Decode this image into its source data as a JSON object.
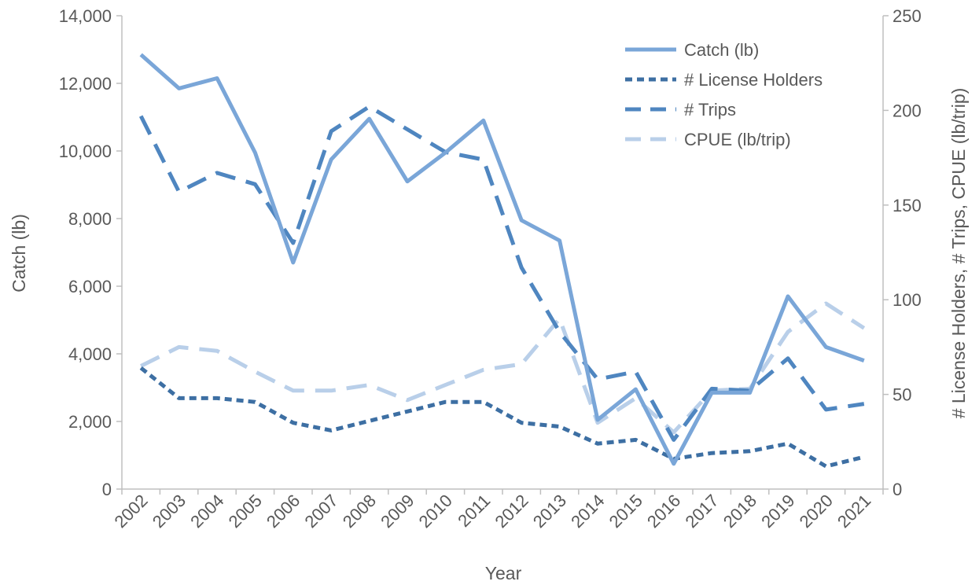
{
  "chart_data": {
    "type": "line",
    "xlabel": "Year",
    "ylabel_left": "Catch (lb)",
    "ylabel_right": "# License Holders, # Trips, CPUE (lb/trip)",
    "categories": [
      "2002",
      "2003",
      "2004",
      "2005",
      "2006",
      "2007",
      "2008",
      "2009",
      "2010",
      "2011",
      "2012",
      "2013",
      "2014",
      "2015",
      "2016",
      "2017",
      "2018",
      "2019",
      "2020",
      "2021"
    ],
    "left_axis": {
      "min": 0,
      "max": 14000,
      "ticks": [
        "0",
        "2,000",
        "4,000",
        "6,000",
        "8,000",
        "10,000",
        "12,000",
        "14,000"
      ],
      "tick_values": [
        0,
        2000,
        4000,
        6000,
        8000,
        10000,
        12000,
        14000
      ]
    },
    "right_axis": {
      "min": 0,
      "max": 250,
      "ticks": [
        "0",
        "50",
        "100",
        "150",
        "200",
        "250"
      ],
      "tick_values": [
        0,
        50,
        100,
        150,
        200,
        250
      ]
    },
    "grid": false,
    "legend_position": "top-right",
    "series": [
      {
        "name": "Catch (lb)",
        "axis": "left",
        "style": "solid",
        "color": "#7aa6d8",
        "values": [
          12850,
          11850,
          12150,
          9950,
          6700,
          9750,
          10950,
          9100,
          9950,
          10900,
          7950,
          7350,
          2050,
          2950,
          750,
          2850,
          2850,
          5700,
          4200,
          3800
        ]
      },
      {
        "name": "# License Holders",
        "axis": "right",
        "style": "dotted",
        "color": "#3d6fa3",
        "values": [
          64,
          48,
          48,
          46,
          35,
          31,
          36,
          41,
          46,
          46,
          35,
          33,
          24,
          26,
          16,
          19,
          20,
          24,
          12,
          17
        ]
      },
      {
        "name": "# Trips",
        "axis": "right",
        "style": "dashed",
        "color": "#4f86c0",
        "values": [
          197,
          157,
          167,
          161,
          130,
          189,
          202,
          190,
          178,
          174,
          117,
          83,
          58,
          62,
          26,
          53,
          52,
          69,
          42,
          45
        ]
      },
      {
        "name": "CPUE (lb/trip)",
        "axis": "right",
        "style": "dashed",
        "color": "#b9cfe9",
        "values": [
          65,
          75,
          73,
          62,
          52,
          52,
          55,
          47,
          55,
          63,
          66,
          90,
          35,
          48,
          30,
          52,
          53,
          83,
          98,
          85
        ]
      }
    ]
  }
}
